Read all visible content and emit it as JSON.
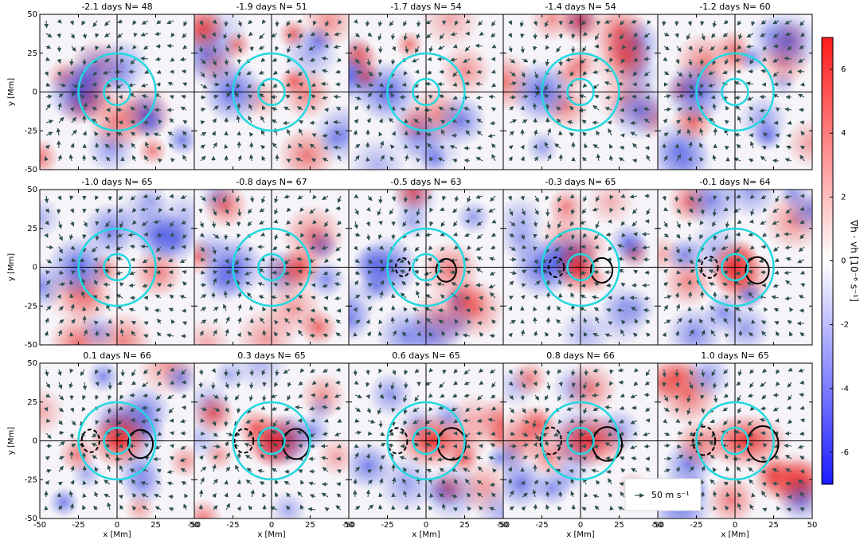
{
  "chart_data": {
    "type": "heatmap-grid",
    "panels": [
      {
        "title": "-2.1 days  N= 48"
      },
      {
        "title": "-1.9 days  N= 51"
      },
      {
        "title": "-1.7 days  N= 54"
      },
      {
        "title": "-1.4 days  N= 54"
      },
      {
        "title": "-1.2 days  N= 60"
      },
      {
        "title": "-1.0 days  N= 65"
      },
      {
        "title": "-0.8 days  N= 67"
      },
      {
        "title": "-0.5 days  N= 63"
      },
      {
        "title": "-0.3 days  N= 65"
      },
      {
        "title": "-0.1 days  N= 64"
      },
      {
        "title": "0.1 days  N= 66"
      },
      {
        "title": "0.3 days  N= 65"
      },
      {
        "title": "0.6 days  N= 65"
      },
      {
        "title": "0.8 days  N= 66"
      },
      {
        "title": "1.0 days  N= 65"
      }
    ],
    "x_label": "x [Mm]",
    "y_label": "y [Mm]",
    "xlim": [
      -50,
      50
    ],
    "ylim": [
      -50,
      50
    ],
    "xticks": [
      -50,
      -25,
      0,
      25,
      50
    ],
    "yticks": [
      -50,
      -25,
      0,
      25,
      50
    ],
    "colorbar_label": "∇h · vh [10⁻⁶ s⁻¹]",
    "clim": [
      -7,
      7
    ],
    "cticks": [
      -6,
      -4,
      -2,
      0,
      2,
      4,
      6
    ],
    "legend_text": "50 m s⁻¹"
  }
}
